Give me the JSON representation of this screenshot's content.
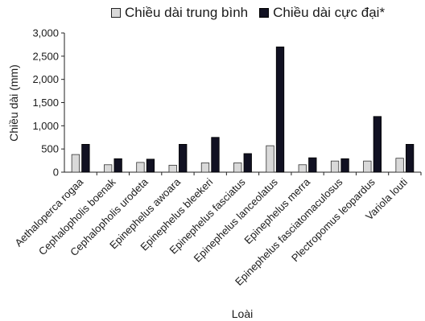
{
  "chart_data": {
    "type": "bar",
    "categories": [
      "Aethaloperca rogaa",
      "Cephalopholis boenak",
      "Cephalopholis urodeta",
      "Epinephelus awoara",
      "Epinephelus bleekeri",
      "Epinephelus fasciatus",
      "Epinephelus lanceolatus",
      "Epinephelus merra",
      "Epinephelus fasciatomaculosus",
      "Plectropomus leopardus",
      "Variola louti"
    ],
    "series": [
      {
        "name": "Chiều dài trung bình",
        "color": "#d9d9d9",
        "values": [
          380,
          160,
          210,
          150,
          200,
          200,
          570,
          160,
          240,
          240,
          300
        ]
      },
      {
        "name": "Chiều dài cực đại*",
        "color": "#111122",
        "values": [
          600,
          290,
          280,
          600,
          750,
          400,
          2700,
          310,
          290,
          1200,
          600
        ]
      }
    ],
    "xlabel": "Loài",
    "ylabel": "Chiều dài (mm)",
    "ylim": [
      0,
      3000
    ],
    "yticks": [
      "0",
      "500",
      "1,000",
      "1,500",
      "2,000",
      "2,500",
      "3,000"
    ],
    "grid": false,
    "legend_position": "top"
  }
}
